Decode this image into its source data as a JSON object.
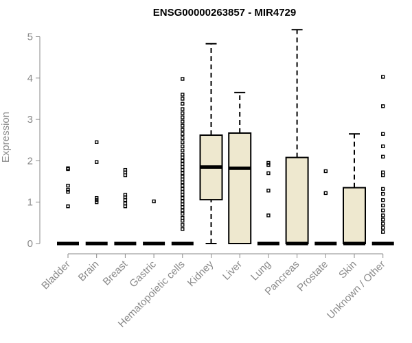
{
  "chart_data": {
    "type": "box",
    "title": "ENSG00000263857 - MIR4729",
    "xlabel": "",
    "ylabel": "Expression",
    "ylim": [
      0,
      5.2
    ],
    "yticks": [
      0,
      1,
      2,
      3,
      4,
      5
    ],
    "grid": false,
    "legend": "none",
    "box_fill": "#eee8cf",
    "categories": [
      "Bladder",
      "Brain",
      "Breast",
      "Gastric",
      "Hematopoietic cells",
      "Kidney",
      "Liver",
      "Lung",
      "Pancreas",
      "Prostate",
      "Skin",
      "Unknown / Other"
    ],
    "boxes": [
      {
        "min": 0,
        "q1": 0,
        "median": 0,
        "q3": 0,
        "max": 0,
        "outliers": [
          0.9,
          1.25,
          1.3,
          1.4,
          1.8,
          1.82
        ]
      },
      {
        "min": 0,
        "q1": 0,
        "median": 0,
        "q3": 0,
        "max": 0,
        "outliers": [
          1.0,
          1.05,
          1.1,
          1.97,
          2.45
        ]
      },
      {
        "min": 0,
        "q1": 0,
        "median": 0,
        "q3": 0,
        "max": 0,
        "outliers": [
          0.9,
          0.97,
          1.05,
          1.12,
          1.18,
          1.65,
          1.72,
          1.78
        ]
      },
      {
        "min": 0,
        "q1": 0,
        "median": 0,
        "q3": 0,
        "max": 0,
        "outliers": [
          1.02
        ]
      },
      {
        "min": 0,
        "q1": 0,
        "median": 0,
        "q3": 0,
        "max": 0,
        "outliers": [
          0.35,
          0.45,
          0.55,
          0.62,
          0.72,
          0.8,
          0.88,
          0.95,
          1.02,
          1.1,
          1.18,
          1.25,
          1.32,
          1.4,
          1.48,
          1.55,
          1.62,
          1.7,
          1.78,
          1.85,
          1.92,
          2.0,
          2.08,
          2.15,
          2.25,
          2.35,
          2.45,
          2.55,
          2.65,
          2.75,
          2.85,
          2.95,
          3.05,
          3.15,
          3.25,
          3.38,
          3.5,
          3.6,
          3.98
        ]
      },
      {
        "min": 0,
        "q1": 1.06,
        "median": 1.85,
        "q3": 2.62,
        "max": 4.83,
        "outliers": []
      },
      {
        "min": 0,
        "q1": 0,
        "median": 1.82,
        "q3": 2.67,
        "max": 3.65,
        "outliers": []
      },
      {
        "min": 0,
        "q1": 0,
        "median": 0,
        "q3": 0,
        "max": 0,
        "outliers": [
          0.68,
          1.28,
          1.7,
          1.9,
          1.95
        ]
      },
      {
        "min": 0,
        "q1": 0,
        "median": 0,
        "q3": 2.08,
        "max": 5.17,
        "outliers": []
      },
      {
        "min": 0,
        "q1": 0,
        "median": 0,
        "q3": 0,
        "max": 0,
        "outliers": [
          1.22,
          1.75
        ]
      },
      {
        "min": 0,
        "q1": 0,
        "median": 0,
        "q3": 1.35,
        "max": 2.65,
        "outliers": []
      },
      {
        "min": 0,
        "q1": 0,
        "median": 0,
        "q3": 0,
        "max": 0,
        "outliers": [
          0.28,
          0.38,
          0.48,
          0.58,
          0.68,
          0.8,
          0.92,
          1.05,
          1.2,
          1.32,
          1.65,
          1.72,
          2.1,
          2.35,
          2.65,
          3.32,
          4.03
        ]
      }
    ]
  }
}
